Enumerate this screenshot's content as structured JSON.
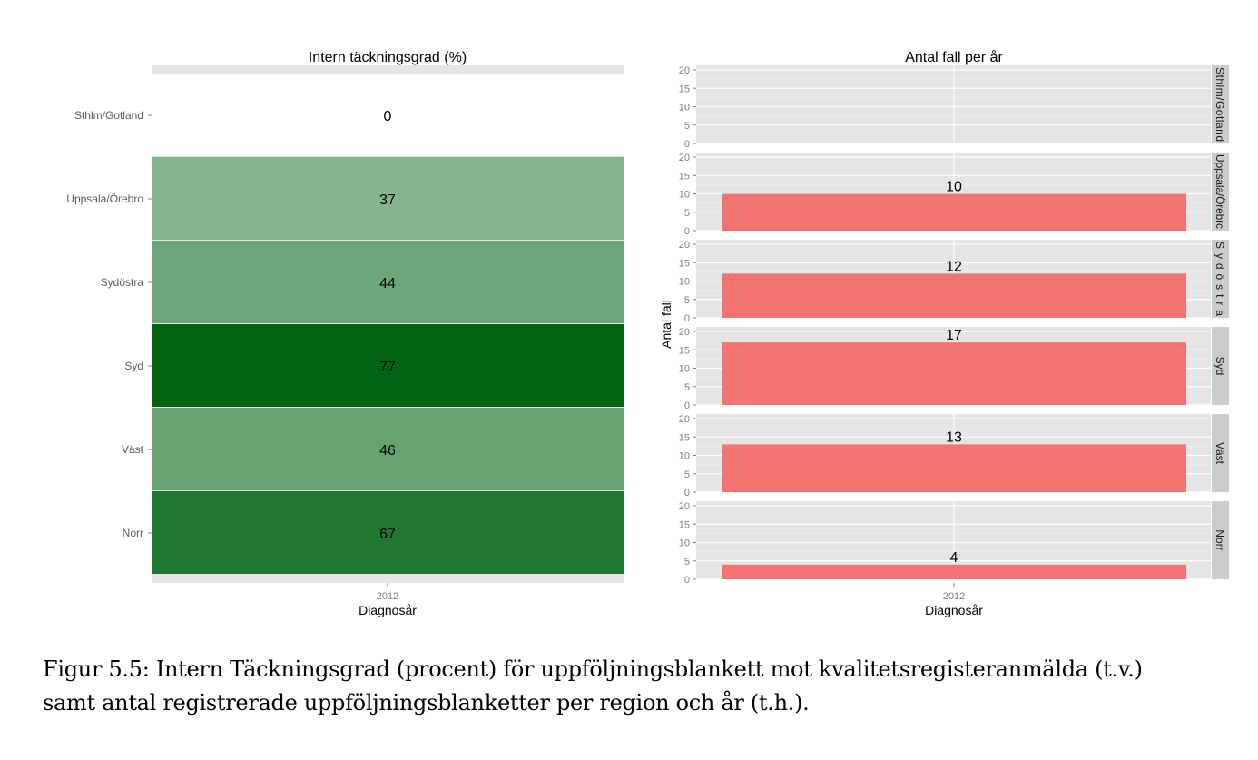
{
  "chart_data": [
    {
      "type": "heatmap",
      "title": "Intern täckningsgrad (%)",
      "xlabel": "Diagnosår",
      "ylabel": "",
      "x_ticks": [
        "2012"
      ],
      "categories": [
        "Sthlm/Gotland",
        "Uppsala/Örebro",
        "Sydöstra",
        "Syd",
        "Väst",
        "Norr"
      ],
      "values": [
        0,
        37,
        44,
        77,
        46,
        67
      ],
      "value_labels": [
        "0",
        "37",
        "44",
        "77",
        "46",
        "67"
      ],
      "color_low": "#ffffff",
      "color_high": "#006412",
      "value_range": [
        0,
        77
      ]
    },
    {
      "type": "bar",
      "title": "Antal fall per år",
      "xlabel": "Diagnosår",
      "ylabel": "Antal fall",
      "x_ticks": [
        "2012"
      ],
      "facets": [
        "Sthlm/Gotland",
        "Uppsala/Örebro",
        "Sydöstra",
        "Syd",
        "Väst",
        "Norr"
      ],
      "facet_label_texts": [
        "Sthlm/Gotland",
        "Uppsala/Örebrc",
        "Sydöstra",
        "Syd",
        "Väst",
        "Norr"
      ],
      "values": [
        0,
        10,
        12,
        17,
        13,
        4
      ],
      "value_labels": [
        "",
        "10",
        "12",
        "17",
        "13",
        "4"
      ],
      "y_ticks": [
        "0",
        "5",
        "10",
        "15",
        "20"
      ],
      "ylim": [
        0,
        21
      ],
      "bar_color": "#f37370",
      "panel_bg": "#e5e5e5",
      "strip_bg": "#cccccc",
      "grid": true
    }
  ],
  "caption": {
    "line1": "Figur 5.5: Intern Täckningsgrad (procent) för uppföljningsblankett mot kvalitetsregisteranmälda (t.v.)",
    "line2": "samt antal registrerade uppföljningsblanketter per region och år (t.h.)."
  }
}
